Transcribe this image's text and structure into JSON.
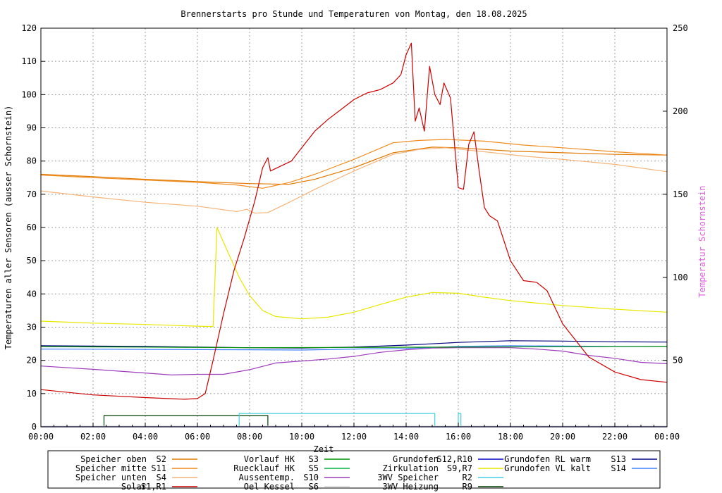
{
  "chart_data": {
    "type": "line",
    "title": "Brennerstarts pro Stunde und Temperaturen von Montag, den 18.08.2025",
    "xlabel": "Zeit",
    "ylabel": "Temperaturen aller Sensoren (ausser Schornstein)",
    "y2label": "Temperatur Schornstein",
    "xlim": [
      0,
      24
    ],
    "ylim": [
      0,
      120
    ],
    "y2lim": [
      10,
      250
    ],
    "grid": true,
    "x_ticks": [
      "00:00",
      "02:00",
      "04:00",
      "06:00",
      "08:00",
      "10:00",
      "12:00",
      "14:00",
      "16:00",
      "18:00",
      "20:00",
      "22:00",
      "00:00"
    ],
    "y_ticks": [
      "0",
      "10",
      "20",
      "30",
      "40",
      "50",
      "60",
      "70",
      "80",
      "90",
      "100",
      "110",
      "120"
    ],
    "y2_ticks": [
      "50",
      "100",
      "150",
      "200",
      "250"
    ],
    "legend": [
      {
        "label": "Speicher oben",
        "code": "S2",
        "color": "#e07800"
      },
      {
        "label": "Speicher mitte",
        "code": "S11",
        "color": "#f08c1e"
      },
      {
        "label": "Speicher unten",
        "code": "S4",
        "color": "#f5b47a"
      },
      {
        "label": "Solar",
        "code": "S1,R1",
        "color": "#cc0000"
      },
      {
        "label": "Vorlauf HK",
        "code": "S3",
        "color": "#009000"
      },
      {
        "label": "Ruecklauf HK",
        "code": "S5",
        "color": "#00b040"
      },
      {
        "label": "Aussentemp.",
        "code": "S10",
        "color": "#9c3cbc"
      },
      {
        "label": "Oel Kessel",
        "code": "S6",
        "color": "#d8d8d8"
      },
      {
        "label": "Grundofen",
        "code": "S12,R10",
        "color": "#0000c0"
      },
      {
        "label": "Zirkulation",
        "code": "S9,R7",
        "color": "#e8e800"
      },
      {
        "label": "3WV Speicher",
        "code": "R2",
        "color": "#40d0e0"
      },
      {
        "label": "3WV Heizung",
        "code": "R9",
        "color": "#004000"
      },
      {
        "label": "Grundofen RL warm",
        "code": "S13",
        "color": "#000080"
      },
      {
        "label": "Grundofen VL kalt",
        "code": "S14",
        "color": "#4080ff"
      }
    ],
    "series": [
      {
        "name": "Speicher oben",
        "code": "S2",
        "color": "#e07800",
        "axis": "y",
        "points": [
          [
            0,
            76
          ],
          [
            2,
            75.3
          ],
          [
            4,
            74.5
          ],
          [
            6,
            73.8
          ],
          [
            8,
            73.2
          ],
          [
            9.5,
            73
          ],
          [
            10.5,
            74.5
          ],
          [
            12,
            78
          ],
          [
            13.5,
            82.5
          ],
          [
            15,
            84.2
          ],
          [
            16,
            84
          ],
          [
            18,
            83
          ],
          [
            20,
            82.5
          ],
          [
            22,
            82
          ],
          [
            24,
            81.8
          ]
        ]
      },
      {
        "name": "Speicher mitte",
        "code": "S11",
        "color": "#f08c1e",
        "axis": "y",
        "points": [
          [
            0,
            75.8
          ],
          [
            2,
            75
          ],
          [
            4,
            74.3
          ],
          [
            6,
            73.6
          ],
          [
            7.5,
            72.8
          ],
          [
            8.5,
            71.8
          ],
          [
            9.5,
            73.5
          ],
          [
            10.5,
            76
          ],
          [
            12,
            80.5
          ],
          [
            13.5,
            85.5
          ],
          [
            14.5,
            86.2
          ],
          [
            15.5,
            86.5
          ],
          [
            17,
            86
          ],
          [
            18.5,
            84.8
          ],
          [
            20,
            84
          ],
          [
            22,
            82.8
          ],
          [
            24,
            81.8
          ]
        ]
      },
      {
        "name": "Speicher unten",
        "code": "S4",
        "color": "#f5b47a",
        "axis": "y",
        "points": [
          [
            0,
            71
          ],
          [
            2,
            69.2
          ],
          [
            4,
            67.6
          ],
          [
            6,
            66.4
          ],
          [
            7.5,
            64.8
          ],
          [
            7.9,
            65.5
          ],
          [
            8.2,
            64.3
          ],
          [
            8.7,
            64.5
          ],
          [
            9.5,
            67.5
          ],
          [
            10.5,
            71.5
          ],
          [
            12,
            77
          ],
          [
            13.5,
            82
          ],
          [
            14.5,
            83.5
          ],
          [
            15.5,
            84
          ],
          [
            17,
            82.8
          ],
          [
            18.5,
            81.5
          ],
          [
            20,
            80.5
          ],
          [
            22,
            79
          ],
          [
            24,
            76.8
          ]
        ]
      },
      {
        "name": "Aussentemp.",
        "code": "S10",
        "color": "#9c3cbc",
        "axis": "y",
        "points": [
          [
            0,
            18.3
          ],
          [
            2,
            17.3
          ],
          [
            4,
            16.2
          ],
          [
            5,
            15.6
          ],
          [
            6,
            15.8
          ],
          [
            7,
            15.8
          ],
          [
            8,
            17.2
          ],
          [
            9,
            19.2
          ],
          [
            10,
            19.8
          ],
          [
            11,
            20.4
          ],
          [
            12,
            21.2
          ],
          [
            13,
            22.4
          ],
          [
            14,
            23.2
          ],
          [
            15,
            23.7
          ],
          [
            16,
            23.8
          ],
          [
            17,
            23.8
          ],
          [
            18,
            23.8
          ],
          [
            19,
            23.4
          ],
          [
            20,
            22.8
          ],
          [
            21,
            21.5
          ],
          [
            22,
            20.6
          ],
          [
            23,
            19.4
          ],
          [
            24,
            19
          ]
        ]
      },
      {
        "name": "Grundofen RL warm",
        "code": "S13",
        "color": "#000080",
        "axis": "y",
        "points": [
          [
            0,
            24.4
          ],
          [
            4,
            24.2
          ],
          [
            8,
            23.8
          ],
          [
            10,
            23.7
          ],
          [
            12,
            24
          ],
          [
            14,
            24.6
          ],
          [
            16,
            25.4
          ],
          [
            18,
            25.9
          ],
          [
            20,
            25.8
          ],
          [
            22,
            25.6
          ],
          [
            24,
            25.5
          ]
        ]
      },
      {
        "name": "Grundofen VL kalt",
        "code": "S14",
        "color": "#4080ff",
        "axis": "y",
        "points": [
          [
            0,
            23.4
          ],
          [
            4,
            23.3
          ],
          [
            8,
            23.2
          ],
          [
            10,
            23.1
          ],
          [
            12,
            23.4
          ],
          [
            14,
            23.6
          ],
          [
            16,
            24.2
          ],
          [
            18,
            24.4
          ],
          [
            20,
            24.3
          ],
          [
            22,
            24.2
          ],
          [
            24,
            24.2
          ]
        ]
      },
      {
        "name": "Vorlauf HK",
        "code": "S3",
        "color": "#009000",
        "axis": "y",
        "points": [
          [
            0,
            24.1
          ],
          [
            4,
            24
          ],
          [
            8,
            23.8
          ],
          [
            12,
            23.9
          ],
          [
            16,
            24
          ],
          [
            20,
            24.1
          ],
          [
            24,
            24.2
          ]
        ]
      },
      {
        "name": "Zirkulation",
        "code": "S9,R7",
        "color": "#e8e800",
        "axis": "y",
        "points": [
          [
            0,
            31.8
          ],
          [
            2,
            31.2
          ],
          [
            4,
            30.8
          ],
          [
            6,
            30.3
          ],
          [
            6.6,
            30.2
          ],
          [
            6.75,
            60
          ],
          [
            7.2,
            52
          ],
          [
            7.6,
            45
          ],
          [
            8,
            39.5
          ],
          [
            8.5,
            35
          ],
          [
            9,
            33.2
          ],
          [
            10,
            32.5
          ],
          [
            11,
            33
          ],
          [
            12,
            34.5
          ],
          [
            13,
            36.8
          ],
          [
            14,
            39
          ],
          [
            15,
            40.4
          ],
          [
            16,
            40.2
          ],
          [
            17,
            39
          ],
          [
            18,
            38
          ],
          [
            20,
            36.5
          ],
          [
            22,
            35.4
          ],
          [
            24,
            34.5
          ]
        ]
      },
      {
        "name": "Solar",
        "code": "S1,R1",
        "color": "#cc0000",
        "axis": "y",
        "points": [
          [
            0,
            11.2
          ],
          [
            2,
            9.6
          ],
          [
            4,
            8.8
          ],
          [
            5.5,
            8.3
          ],
          [
            6,
            8.5
          ],
          [
            6.3,
            10
          ],
          [
            6.6,
            20
          ],
          [
            7,
            34
          ],
          [
            7.4,
            47
          ],
          [
            7.8,
            57
          ],
          [
            8.2,
            68
          ],
          [
            8.5,
            78
          ],
          [
            8.7,
            81
          ],
          [
            8.8,
            77
          ],
          [
            9.2,
            78.5
          ],
          [
            9.6,
            80
          ],
          [
            10,
            84
          ],
          [
            10.5,
            89
          ],
          [
            11,
            92.5
          ],
          [
            11.5,
            95.5
          ],
          [
            12,
            98.5
          ],
          [
            12.5,
            100.5
          ],
          [
            13,
            101.5
          ],
          [
            13.5,
            103.5
          ],
          [
            13.8,
            106
          ],
          [
            14,
            112
          ],
          [
            14.2,
            115.5
          ],
          [
            14.35,
            92
          ],
          [
            14.5,
            96
          ],
          [
            14.7,
            89
          ],
          [
            14.9,
            108.5
          ],
          [
            15.1,
            100
          ],
          [
            15.3,
            97
          ],
          [
            15.45,
            103.5
          ],
          [
            15.7,
            99
          ],
          [
            16,
            72
          ],
          [
            16.2,
            71.5
          ],
          [
            16.4,
            85
          ],
          [
            16.6,
            88.8
          ],
          [
            16.8,
            77
          ],
          [
            17,
            66
          ],
          [
            17.2,
            63.5
          ],
          [
            17.5,
            62
          ],
          [
            18,
            50
          ],
          [
            18.5,
            44
          ],
          [
            19,
            43.5
          ],
          [
            19.4,
            41
          ],
          [
            20,
            31
          ],
          [
            21,
            21
          ],
          [
            22,
            16.5
          ],
          [
            23,
            14.2
          ],
          [
            24,
            13.4
          ]
        ]
      },
      {
        "name": "3WV Heizung",
        "code": "R9",
        "color": "#004000",
        "axis": "y",
        "points": [
          [
            2.42,
            0
          ],
          [
            2.42,
            3.4
          ],
          [
            8.7,
            3.4
          ],
          [
            8.7,
            0
          ]
        ]
      },
      {
        "name": "3WV Speicher",
        "code": "R2",
        "color": "#40d0e0",
        "axis": "y",
        "points": [
          [
            7.6,
            0
          ],
          [
            7.6,
            4
          ],
          [
            15.1,
            4
          ],
          [
            15.1,
            0
          ],
          [
            16,
            0
          ],
          [
            16,
            4
          ],
          [
            16.1,
            4
          ],
          [
            16.1,
            0
          ]
        ]
      },
      {
        "name": "Oel Kessel",
        "code": "S6",
        "color": "#d8d8d8",
        "axis": "y",
        "points": [
          [
            0,
            0.2
          ],
          [
            24,
            0.2
          ]
        ]
      },
      {
        "name": "Grundofen",
        "code": "S12,R10",
        "color": "#0000c0",
        "axis": "y",
        "points": [
          [
            0,
            0
          ],
          [
            24,
            0
          ]
        ]
      }
    ]
  }
}
